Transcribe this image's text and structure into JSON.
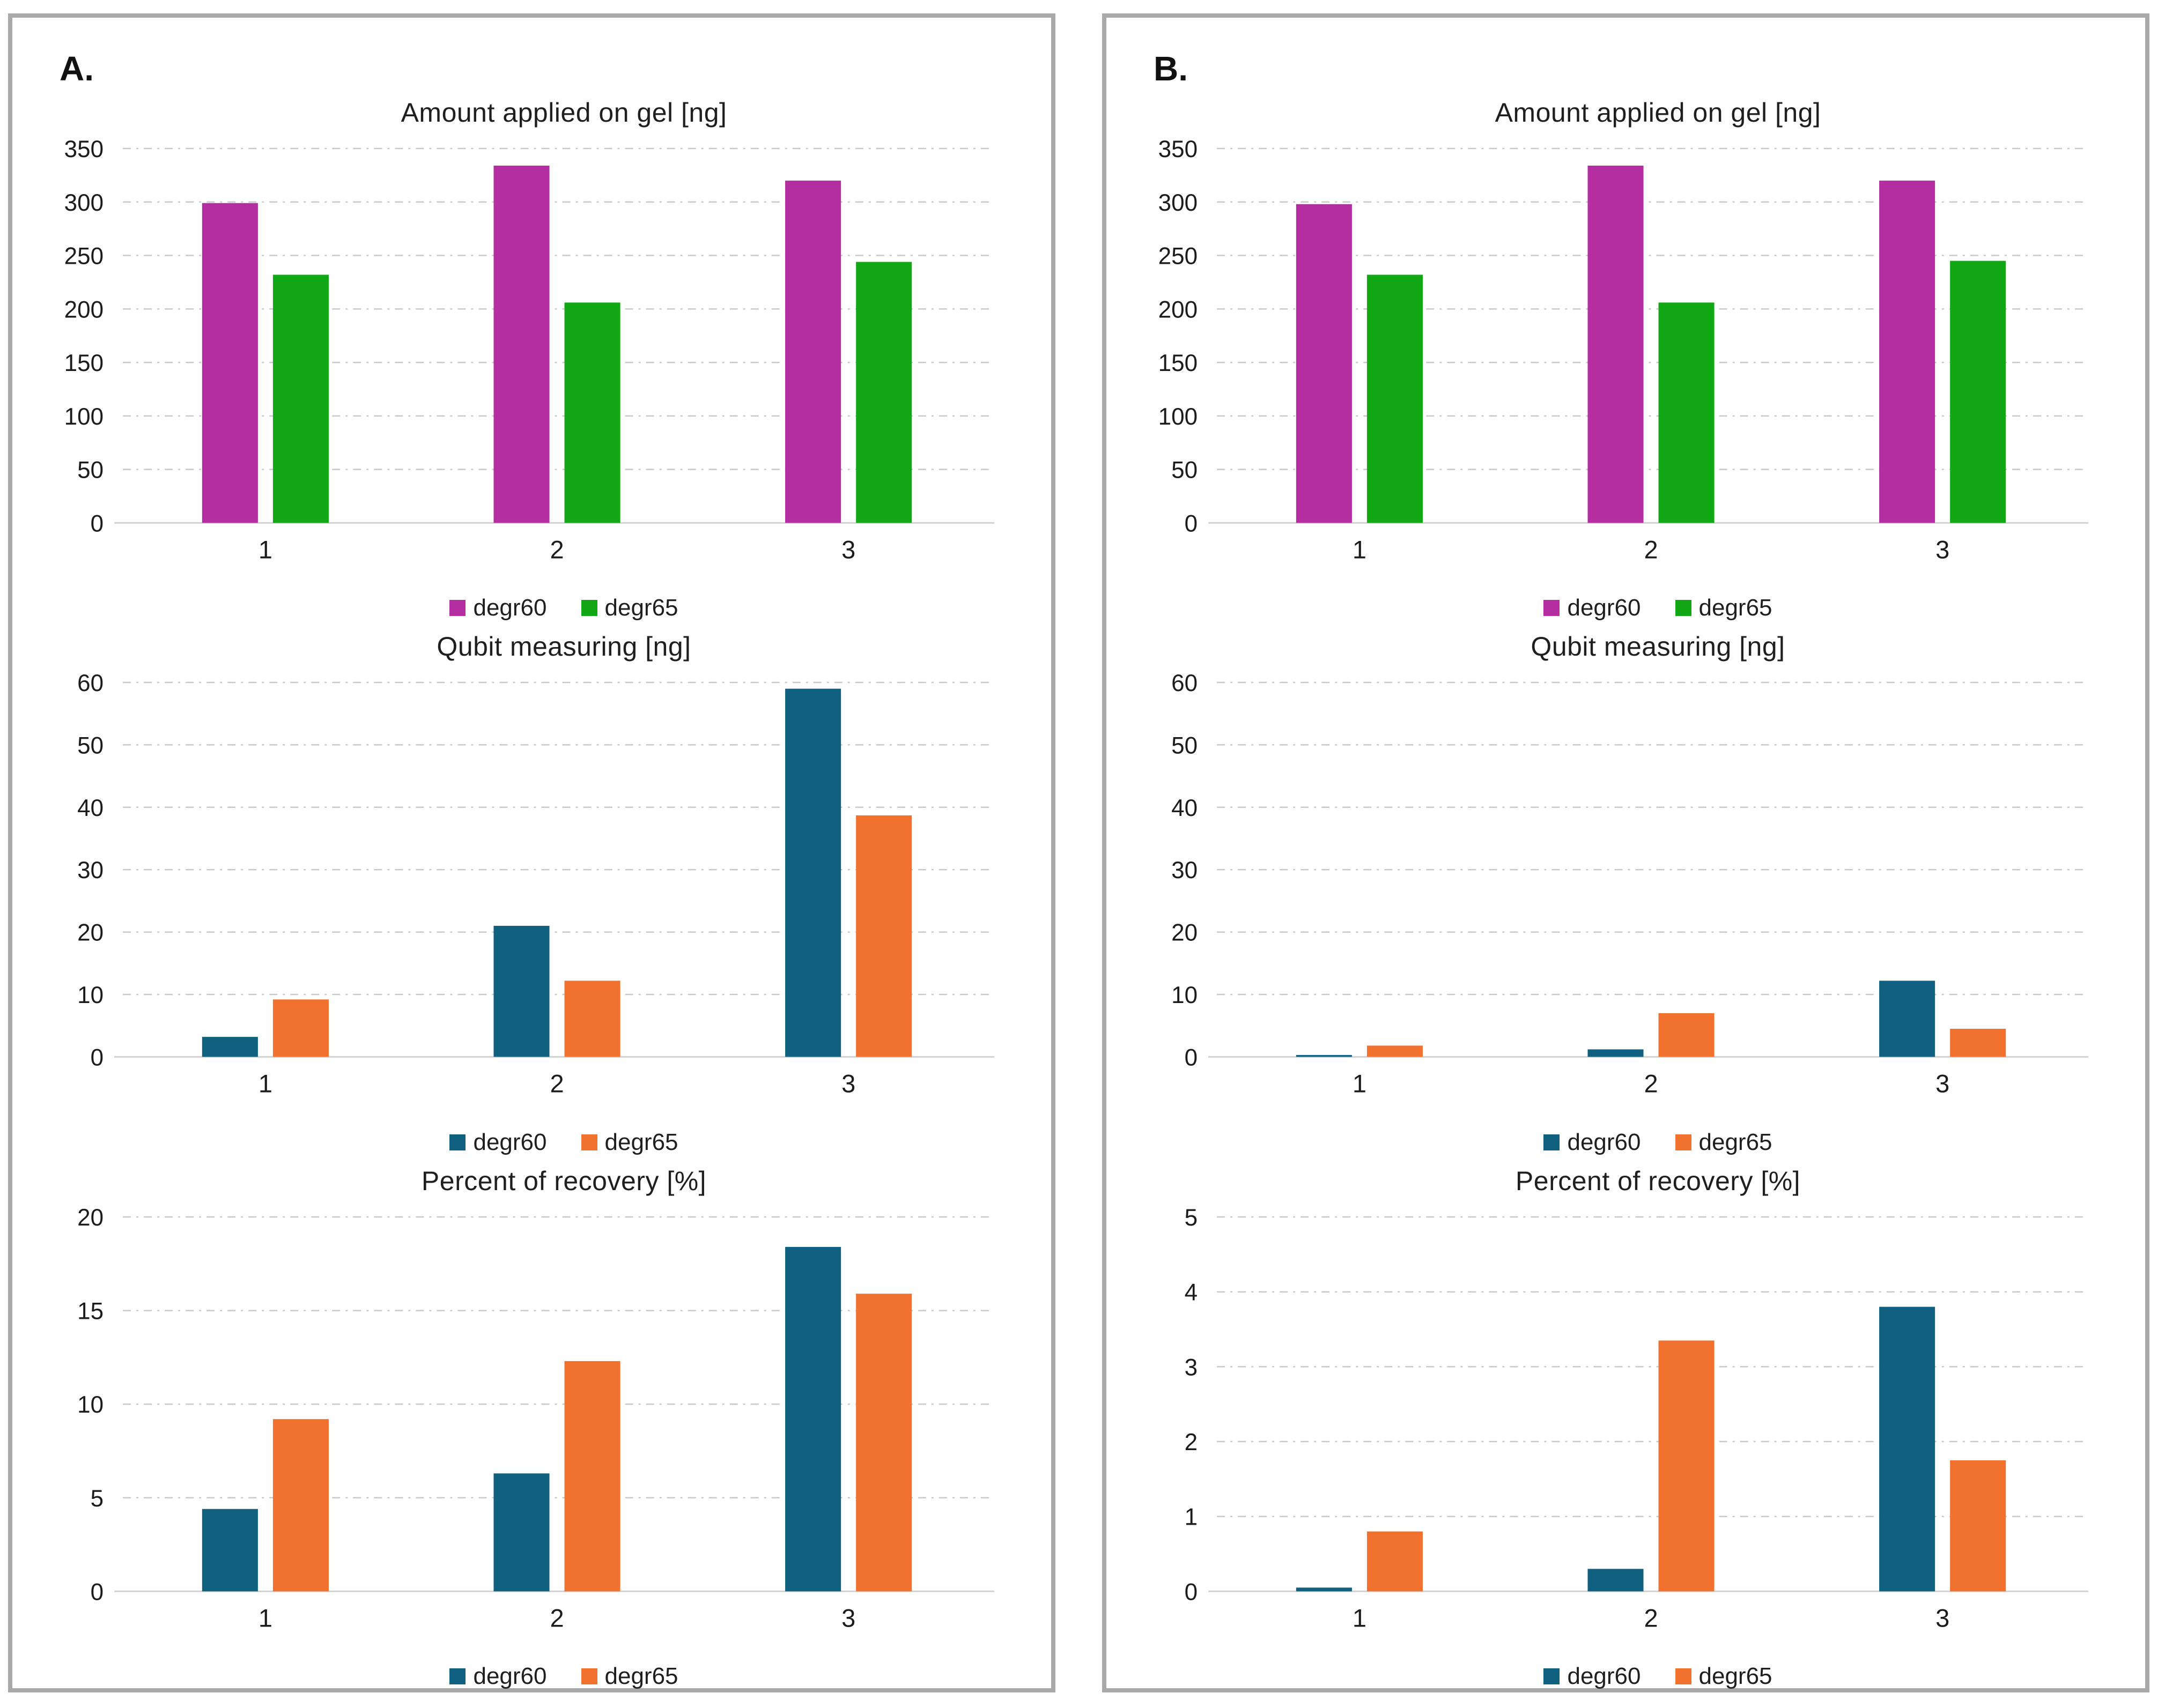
{
  "panels": [
    {
      "label": "A.",
      "charts": [
        0,
        1,
        2
      ]
    },
    {
      "label": "B.",
      "charts": [
        3,
        4,
        5
      ]
    }
  ],
  "colors": {
    "degr60_gel": "#b42da1",
    "degr65_gel": "#12a714",
    "degr60_measure": "#10617f",
    "degr65_measure": "#f1712e",
    "panel_border": "#a9a9a9",
    "gridline": "#c9c9c9",
    "baseline": "#d2d2d2"
  },
  "chart_data": [
    {
      "type": "bar",
      "panel": "A",
      "title": "Amount applied on gel [ng]",
      "categories": [
        "1",
        "2",
        "3"
      ],
      "series": [
        {
          "name": "degr60",
          "color": "#b42da1",
          "values": [
            299,
            334,
            320
          ]
        },
        {
          "name": "degr65",
          "color": "#12a714",
          "values": [
            232,
            206,
            244
          ]
        }
      ],
      "ylim": [
        0,
        350
      ],
      "ytick": 50,
      "grid": "dash-dot horizontal",
      "legend_position": "bottom"
    },
    {
      "type": "bar",
      "panel": "A",
      "title": "Qubit measuring [ng]",
      "categories": [
        "1",
        "2",
        "3"
      ],
      "series": [
        {
          "name": "degr60",
          "color": "#10617f",
          "values": [
            3.2,
            21,
            59
          ]
        },
        {
          "name": "degr65",
          "color": "#f1712e",
          "values": [
            9.2,
            12.2,
            38.7
          ]
        }
      ],
      "ylim": [
        0,
        60
      ],
      "ytick": 10,
      "grid": "dash-dot horizontal",
      "legend_position": "bottom"
    },
    {
      "type": "bar",
      "panel": "A",
      "title": "Percent of recovery [%]",
      "categories": [
        "1",
        "2",
        "3"
      ],
      "series": [
        {
          "name": "degr60",
          "color": "#10617f",
          "values": [
            4.4,
            6.3,
            18.4
          ]
        },
        {
          "name": "degr65",
          "color": "#f1712e",
          "values": [
            9.2,
            12.3,
            15.9
          ]
        }
      ],
      "ylim": [
        0,
        20
      ],
      "ytick": 5,
      "grid": "dash-dot horizontal",
      "legend_position": "bottom"
    },
    {
      "type": "bar",
      "panel": "B",
      "title": "Amount applied on gel [ng]",
      "categories": [
        "1",
        "2",
        "3"
      ],
      "series": [
        {
          "name": "degr60",
          "color": "#b42da1",
          "values": [
            298,
            334,
            320
          ]
        },
        {
          "name": "degr65",
          "color": "#12a714",
          "values": [
            232,
            206,
            245
          ]
        }
      ],
      "ylim": [
        0,
        350
      ],
      "ytick": 50,
      "grid": "dash-dot horizontal",
      "legend_position": "bottom"
    },
    {
      "type": "bar",
      "panel": "B",
      "title": "Qubit measuring [ng]",
      "categories": [
        "1",
        "2",
        "3"
      ],
      "series": [
        {
          "name": "degr60",
          "color": "#10617f",
          "values": [
            0.3,
            1.2,
            12.2
          ]
        },
        {
          "name": "degr65",
          "color": "#f1712e",
          "values": [
            1.8,
            7.0,
            4.5
          ]
        }
      ],
      "ylim": [
        0,
        60
      ],
      "ytick": 10,
      "grid": "dash-dot horizontal",
      "legend_position": "bottom"
    },
    {
      "type": "bar",
      "panel": "B",
      "title": "Percent of recovery [%]",
      "categories": [
        "1",
        "2",
        "3"
      ],
      "series": [
        {
          "name": "degr60",
          "color": "#10617f",
          "values": [
            0.05,
            0.3,
            3.8
          ]
        },
        {
          "name": "degr65",
          "color": "#f1712e",
          "values": [
            0.8,
            3.35,
            1.75
          ]
        }
      ],
      "ylim": [
        0,
        5
      ],
      "ytick": 1,
      "grid": "dash-dot horizontal",
      "legend_position": "bottom"
    }
  ]
}
